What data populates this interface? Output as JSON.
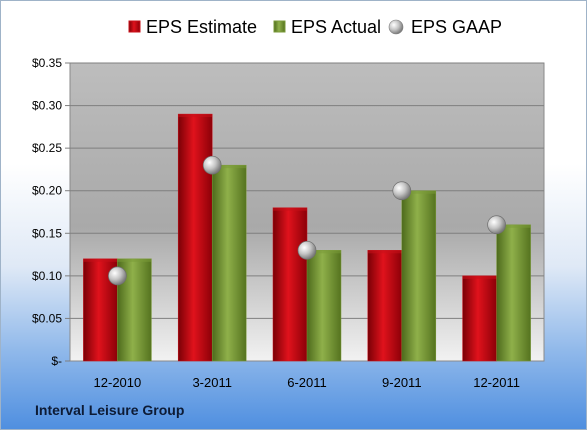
{
  "company": "Interval Leisure Group",
  "chart_data": {
    "type": "bar",
    "categories": [
      "12-2010",
      "3-2011",
      "6-2011",
      "9-2011",
      "12-2011"
    ],
    "series": [
      {
        "name": "EPS Estimate",
        "kind": "bar",
        "color": "#c8101a",
        "values": [
          0.12,
          0.29,
          0.18,
          0.13,
          0.1
        ]
      },
      {
        "name": "EPS Actual",
        "kind": "bar",
        "color": "#7a9a38",
        "values": [
          0.12,
          0.23,
          0.13,
          0.2,
          0.16
        ]
      },
      {
        "name": "EPS GAAP",
        "kind": "marker",
        "color": "#b8b8b8",
        "values": [
          0.1,
          0.23,
          0.13,
          0.2,
          0.16
        ]
      }
    ],
    "y_ticks": [
      {
        "value": 0.0,
        "label": "$-"
      },
      {
        "value": 0.05,
        "label": "$0.05"
      },
      {
        "value": 0.1,
        "label": "$0.10"
      },
      {
        "value": 0.15,
        "label": "$0.15"
      },
      {
        "value": 0.2,
        "label": "$0.20"
      },
      {
        "value": 0.25,
        "label": "$0.25"
      },
      {
        "value": 0.3,
        "label": "$0.30"
      },
      {
        "value": 0.35,
        "label": "$0.35"
      }
    ],
    "ylim": [
      0,
      0.35
    ],
    "grid": true,
    "legend_position": "top"
  }
}
